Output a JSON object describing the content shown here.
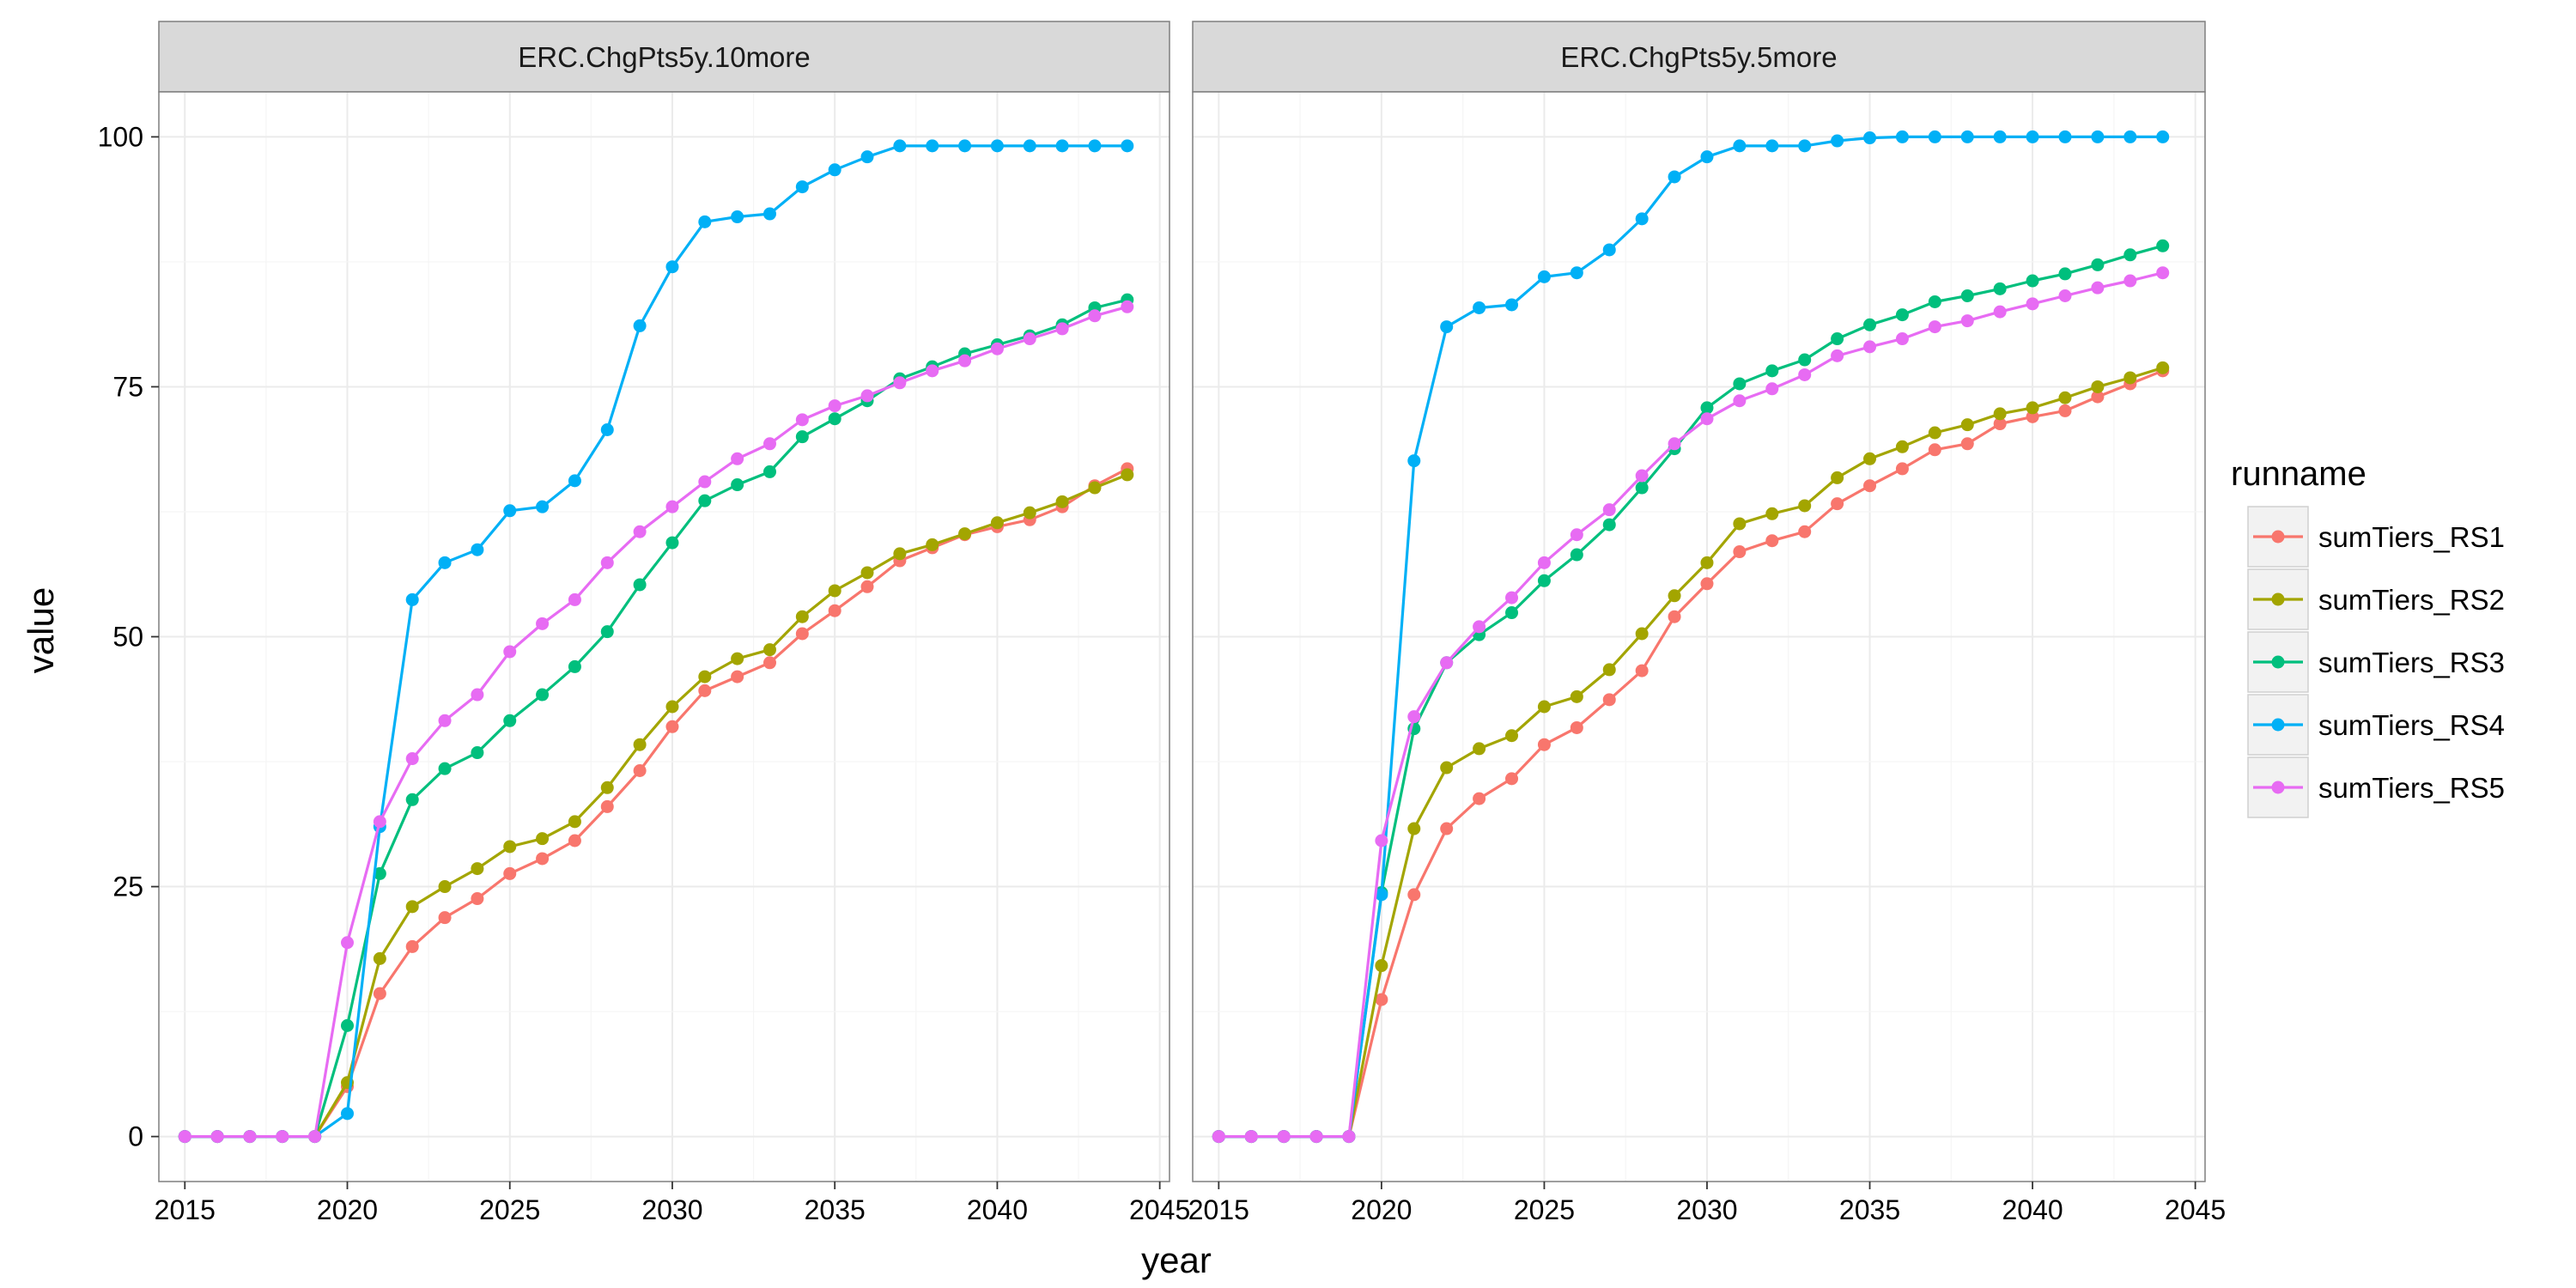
{
  "chart_data": {
    "type": "line",
    "xlabel": "year",
    "ylabel": "value",
    "xlim": [
      2014.2,
      2045.3
    ],
    "ylim": [
      -4.5,
      104.5
    ],
    "x_ticks": [
      2015,
      2020,
      2025,
      2030,
      2035,
      2040,
      2045
    ],
    "y_ticks": [
      0,
      25,
      50,
      75,
      100
    ],
    "grid": true,
    "legend": {
      "title": "runname",
      "placement": "right",
      "entries": [
        "sumTiers_RS1",
        "sumTiers_RS2",
        "sumTiers_RS3",
        "sumTiers_RS4",
        "sumTiers_RS5"
      ],
      "colors": [
        "#F8766D",
        "#A3A500",
        "#00BF7D",
        "#00B0F6",
        "#E76BF3"
      ]
    },
    "x": [
      2015,
      2016,
      2017,
      2018,
      2019,
      2020,
      2021,
      2022,
      2023,
      2024,
      2025,
      2026,
      2027,
      2028,
      2029,
      2030,
      2031,
      2032,
      2033,
      2034,
      2035,
      2036,
      2037,
      2038,
      2039,
      2040,
      2041,
      2042,
      2043,
      2044
    ],
    "panels": [
      {
        "title": "ERC.ChgPts5y.10more",
        "series": [
          {
            "name": "sumTiers_RS1",
            "values": [
              0,
              0,
              0,
              0,
              0,
              5.0,
              14.3,
              19.0,
              21.9,
              23.8,
              26.3,
              27.8,
              29.6,
              33.0,
              36.6,
              41.0,
              44.6,
              46.0,
              47.4,
              50.3,
              52.6,
              55.0,
              57.6,
              58.9,
              60.2,
              61.0,
              61.7,
              63.0,
              65.1,
              66.8
            ]
          },
          {
            "name": "sumTiers_RS2",
            "values": [
              0,
              0,
              0,
              0,
              0,
              5.4,
              17.8,
              23.0,
              25.0,
              26.8,
              29.0,
              29.8,
              31.5,
              34.9,
              39.2,
              43.0,
              46.0,
              47.8,
              48.7,
              52.0,
              54.6,
              56.4,
              58.3,
              59.2,
              60.3,
              61.4,
              62.4,
              63.5,
              64.9,
              66.2
            ]
          },
          {
            "name": "sumTiers_RS3",
            "values": [
              0,
              0,
              0,
              0,
              0,
              11.1,
              26.3,
              33.7,
              36.8,
              38.4,
              41.6,
              44.2,
              47.0,
              50.5,
              55.2,
              59.4,
              63.6,
              65.2,
              66.5,
              70.0,
              71.8,
              73.6,
              75.8,
              77.0,
              78.3,
              79.2,
              80.1,
              81.2,
              82.9,
              83.7
            ]
          },
          {
            "name": "sumTiers_RS4",
            "values": [
              0,
              0,
              0,
              0,
              0,
              2.3,
              31.0,
              53.7,
              57.4,
              58.7,
              62.6,
              63.0,
              65.6,
              70.7,
              81.1,
              87.0,
              91.5,
              92.0,
              92.3,
              95.0,
              96.7,
              98.0,
              99.1,
              99.1,
              99.1,
              99.1,
              99.1,
              99.1,
              99.1,
              99.1
            ]
          },
          {
            "name": "sumTiers_RS5",
            "values": [
              0,
              0,
              0,
              0,
              0,
              19.4,
              31.5,
              37.8,
              41.6,
              44.2,
              48.5,
              51.3,
              53.7,
              57.4,
              60.5,
              63.0,
              65.5,
              67.8,
              69.3,
              71.7,
              73.1,
              74.1,
              75.4,
              76.6,
              77.6,
              78.8,
              79.8,
              80.8,
              82.1,
              83.0
            ]
          }
        ]
      },
      {
        "title": "ERC.ChgPts5y.5more",
        "series": [
          {
            "name": "sumTiers_RS1",
            "values": [
              0,
              0,
              0,
              0,
              0,
              13.7,
              24.2,
              30.8,
              33.8,
              35.8,
              39.2,
              40.9,
              43.7,
              46.6,
              52.0,
              55.3,
              58.5,
              59.6,
              60.5,
              63.3,
              65.1,
              66.8,
              68.7,
              69.3,
              71.3,
              72.0,
              72.6,
              74.0,
              75.3,
              76.6
            ]
          },
          {
            "name": "sumTiers_RS2",
            "values": [
              0,
              0,
              0,
              0,
              0,
              17.1,
              30.8,
              36.9,
              38.8,
              40.1,
              43.0,
              44.0,
              46.7,
              50.3,
              54.1,
              57.4,
              61.3,
              62.3,
              63.1,
              65.9,
              67.8,
              69.0,
              70.4,
              71.2,
              72.3,
              72.9,
              73.9,
              75.0,
              75.9,
              76.9
            ]
          },
          {
            "name": "sumTiers_RS3",
            "values": [
              0,
              0,
              0,
              0,
              0,
              24.4,
              40.8,
              47.4,
              50.2,
              52.4,
              55.6,
              58.2,
              61.2,
              64.9,
              68.8,
              72.9,
              75.3,
              76.6,
              77.7,
              79.8,
              81.2,
              82.2,
              83.5,
              84.1,
              84.8,
              85.6,
              86.3,
              87.2,
              88.2,
              89.1
            ]
          },
          {
            "name": "sumTiers_RS4",
            "values": [
              0,
              0,
              0,
              0,
              0,
              24.2,
              67.6,
              81.0,
              82.9,
              83.2,
              86.0,
              86.4,
              88.7,
              91.8,
              96.0,
              98.0,
              99.1,
              99.1,
              99.1,
              99.6,
              99.9,
              100,
              100,
              100,
              100,
              100,
              100,
              100,
              100,
              100
            ]
          },
          {
            "name": "sumTiers_RS5",
            "values": [
              0,
              0,
              0,
              0,
              0,
              29.6,
              42.0,
              47.4,
              51.0,
              53.9,
              57.4,
              60.2,
              62.7,
              66.1,
              69.3,
              71.8,
              73.6,
              74.8,
              76.2,
              78.1,
              79.0,
              79.8,
              81.0,
              81.6,
              82.5,
              83.3,
              84.1,
              84.9,
              85.6,
              86.4
            ]
          }
        ]
      }
    ]
  }
}
